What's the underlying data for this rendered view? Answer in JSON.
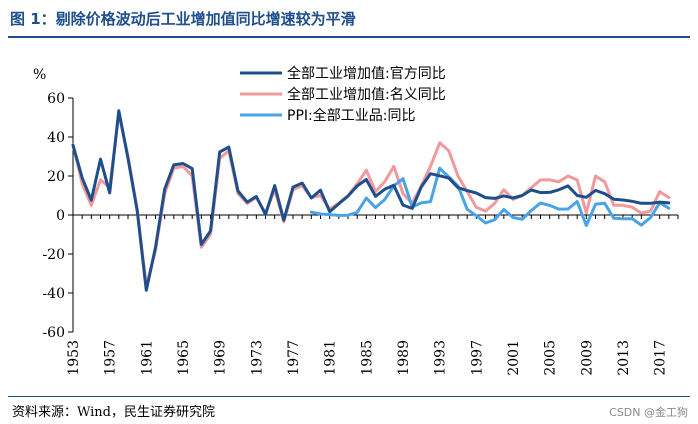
{
  "figure": {
    "title": "图 1：剔除价格波动后工业增加值同比增速较为平滑",
    "source": "资料来源：Wind，民生证券研究院",
    "watermark": "CSDN @金工狗"
  },
  "chart_data": {
    "type": "line",
    "title": "剔除价格波动后工业增加值同比增速较为平滑",
    "ylabel": "%",
    "xlabel": "",
    "xlim": [
      1953,
      2019
    ],
    "ylim": [
      -60,
      60
    ],
    "yticks": [
      60,
      40,
      20,
      0,
      -20,
      -40,
      -60
    ],
    "xticks": [
      1953,
      1957,
      1961,
      1965,
      1969,
      1973,
      1977,
      1981,
      1985,
      1989,
      1993,
      1997,
      2001,
      2005,
      2009,
      2013,
      2017
    ],
    "legend_position": "top-right",
    "series": [
      {
        "name": "全部工业增加值:官方同比",
        "color": "#1f4e8c",
        "x": [
          1953,
          1954,
          1955,
          1956,
          1957,
          1958,
          1959,
          1960,
          1961,
          1962,
          1963,
          1964,
          1965,
          1966,
          1967,
          1968,
          1969,
          1970,
          1971,
          1972,
          1973,
          1974,
          1975,
          1976,
          1977,
          1978,
          1979,
          1980,
          1981,
          1982,
          1983,
          1984,
          1985,
          1986,
          1987,
          1988,
          1989,
          1990,
          1991,
          1992,
          1993,
          1994,
          1995,
          1996,
          1997,
          1998,
          1999,
          2000,
          2001,
          2002,
          2003,
          2004,
          2005,
          2006,
          2007,
          2008,
          2009,
          2010,
          2011,
          2012,
          2013,
          2014,
          2015,
          2016,
          2017,
          2018
        ],
        "values": [
          35.8,
          19.0,
          7.6,
          28.6,
          11.4,
          53.5,
          29.1,
          2.2,
          -38.6,
          -16.6,
          13.3,
          25.7,
          26.4,
          23.8,
          -15.1,
          -8.2,
          32.3,
          34.8,
          12.3,
          6.6,
          9.5,
          0.3,
          15.1,
          -2.6,
          14.3,
          16.4,
          8.7,
          12.7,
          1.7,
          5.8,
          9.7,
          14.9,
          18.2,
          9.6,
          13.2,
          15.3,
          5.1,
          3.4,
          14.4,
          21.2,
          20.1,
          18.9,
          14.0,
          12.5,
          11.3,
          8.9,
          8.5,
          9.8,
          8.7,
          10.0,
          12.8,
          11.5,
          11.6,
          12.9,
          14.9,
          10.0,
          9.1,
          12.6,
          10.9,
          8.1,
          7.7,
          7.0,
          6.0,
          6.0,
          6.6,
          6.2
        ]
      },
      {
        "name": "全部工业增加值:名义同比",
        "color": "#f2999b",
        "x": [
          1953,
          1954,
          1955,
          1956,
          1957,
          1958,
          1959,
          1960,
          1961,
          1962,
          1963,
          1964,
          1965,
          1966,
          1967,
          1968,
          1969,
          1970,
          1971,
          1972,
          1973,
          1974,
          1975,
          1976,
          1977,
          1978,
          1979,
          1980,
          1981,
          1982,
          1983,
          1984,
          1985,
          1986,
          1987,
          1988,
          1989,
          1990,
          1991,
          1992,
          1993,
          1994,
          1995,
          1996,
          1997,
          1998,
          1999,
          2000,
          2001,
          2002,
          2003,
          2004,
          2005,
          2006,
          2007,
          2008,
          2009,
          2010,
          2011,
          2012,
          2013,
          2014,
          2015,
          2016,
          2017,
          2018
        ],
        "values": [
          36.0,
          16.0,
          5.0,
          18.0,
          14.0,
          52.0,
          30.0,
          3.0,
          -36.5,
          -18.0,
          11.0,
          24.0,
          25.0,
          20.0,
          -16.5,
          -10.0,
          29.0,
          33.0,
          11.0,
          6.0,
          9.0,
          1.0,
          13.0,
          -3.5,
          13.0,
          15.0,
          9.0,
          10.0,
          3.0,
          6.0,
          10.0,
          16.0,
          23.0,
          12.0,
          17.0,
          25.0,
          11.0,
          6.0,
          15.0,
          25.0,
          37.0,
          33.0,
          20.0,
          12.0,
          4.0,
          2.0,
          6.0,
          13.0,
          8.0,
          10.0,
          14.0,
          18.0,
          18.0,
          17.0,
          20.0,
          18.0,
          1.0,
          20.0,
          17.0,
          5.0,
          5.0,
          4.0,
          1.0,
          2.0,
          12.0,
          9.0
        ]
      },
      {
        "name": "PPI:全部工业品:同比",
        "color": "#4aa3e8",
        "x": [
          1979,
          1980,
          1981,
          1982,
          1983,
          1984,
          1985,
          1986,
          1987,
          1988,
          1989,
          1990,
          1991,
          1992,
          1993,
          1994,
          1995,
          1996,
          1997,
          1998,
          1999,
          2000,
          2001,
          2002,
          2003,
          2004,
          2005,
          2006,
          2007,
          2008,
          2009,
          2010,
          2011,
          2012,
          2013,
          2014,
          2015,
          2016,
          2017,
          2018
        ],
        "values": [
          1.5,
          0.5,
          0.2,
          -0.2,
          -0.1,
          1.4,
          8.7,
          3.8,
          7.9,
          15.0,
          18.6,
          4.1,
          6.2,
          6.8,
          24.0,
          19.5,
          14.9,
          2.9,
          -0.3,
          -4.1,
          -2.4,
          2.8,
          -1.3,
          -2.2,
          2.3,
          6.1,
          4.9,
          3.0,
          3.1,
          6.9,
          -5.4,
          5.5,
          6.0,
          -1.7,
          -1.9,
          -1.9,
          -5.2,
          -1.4,
          6.3,
          3.5
        ]
      }
    ]
  }
}
